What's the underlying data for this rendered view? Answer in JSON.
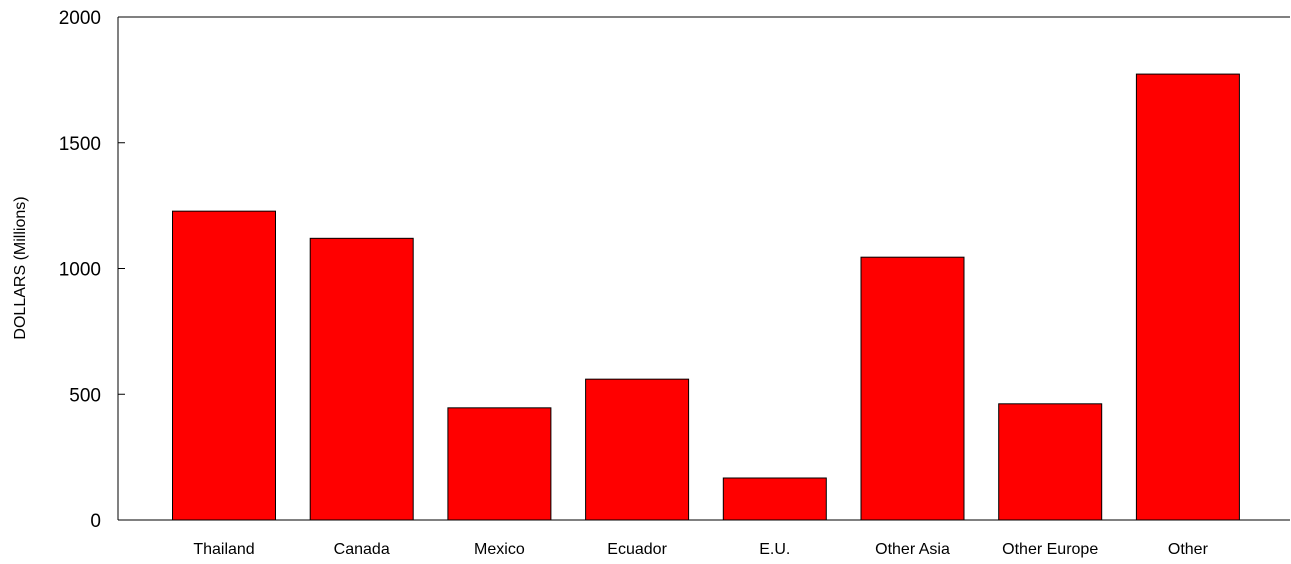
{
  "chart_data": {
    "type": "bar",
    "title": "",
    "xlabel": "",
    "ylabel": "DOLLARS (Millions)",
    "categories": [
      "Thailand",
      "Canada",
      "Mexico",
      "Ecuador",
      "E.U.",
      "Other Asia",
      "Other Europe",
      "Other"
    ],
    "values": [
      1228,
      1120,
      446,
      560,
      167,
      1045,
      462,
      1773
    ],
    "ylim": [
      0,
      2000
    ],
    "yticks": [
      0,
      500,
      1000,
      1500,
      2000
    ],
    "bar_color": "#ff0000",
    "grid": false,
    "legend": "none"
  }
}
